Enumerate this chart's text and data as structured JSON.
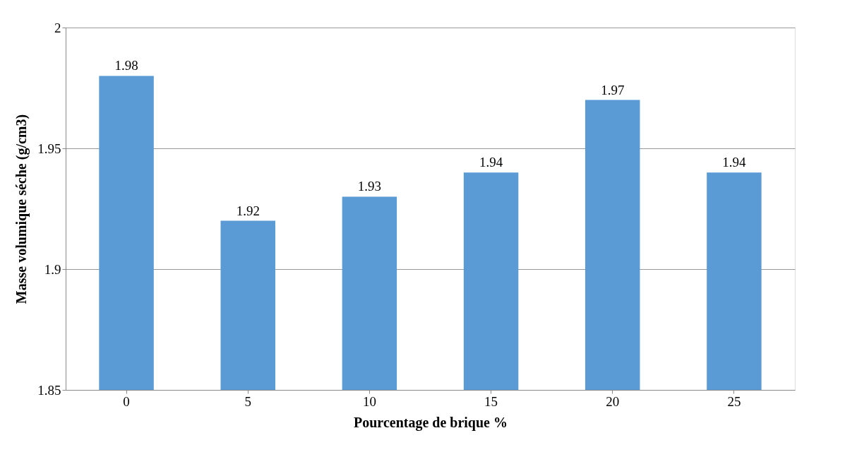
{
  "chart_data": {
    "type": "bar",
    "xlabel": "Pourcentage de brique %",
    "ylabel": "Masse volumique séche (g/cm3)",
    "categories": [
      "0",
      "5",
      "10",
      "15",
      "20",
      "25"
    ],
    "values": [
      1.98,
      1.92,
      1.93,
      1.94,
      1.97,
      1.94
    ],
    "color": "#5b9bd5",
    "ylim": [
      1.85,
      2
    ],
    "yticks": [
      1.85,
      1.9,
      1.95,
      2
    ],
    "grid": "y",
    "data_labels": true
  }
}
